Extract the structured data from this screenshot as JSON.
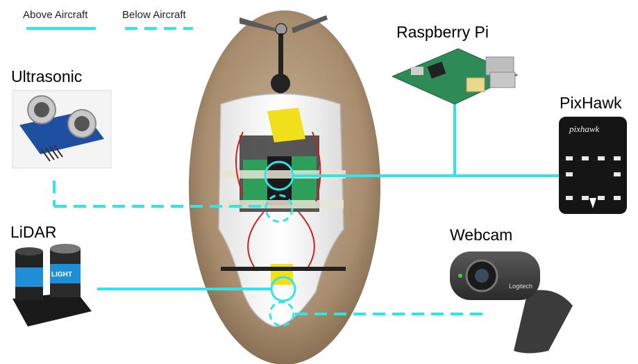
{
  "legend": {
    "above_label": "Above Aircraft",
    "below_label": "Below Aircraft"
  },
  "devices": {
    "ultrasonic": "Ultrasonic",
    "lidar": "LiDAR",
    "raspberry_pi": "Raspberry Pi",
    "pixhawk": "PixHawk",
    "webcam": "Webcam"
  },
  "pictures": {
    "pixhawk_logo": "pixhawk",
    "lidar_brand": "LIGHT",
    "webcam_brand": "Logitech"
  },
  "colors": {
    "connector": "#2ee6e6",
    "background": "#ffffff"
  }
}
